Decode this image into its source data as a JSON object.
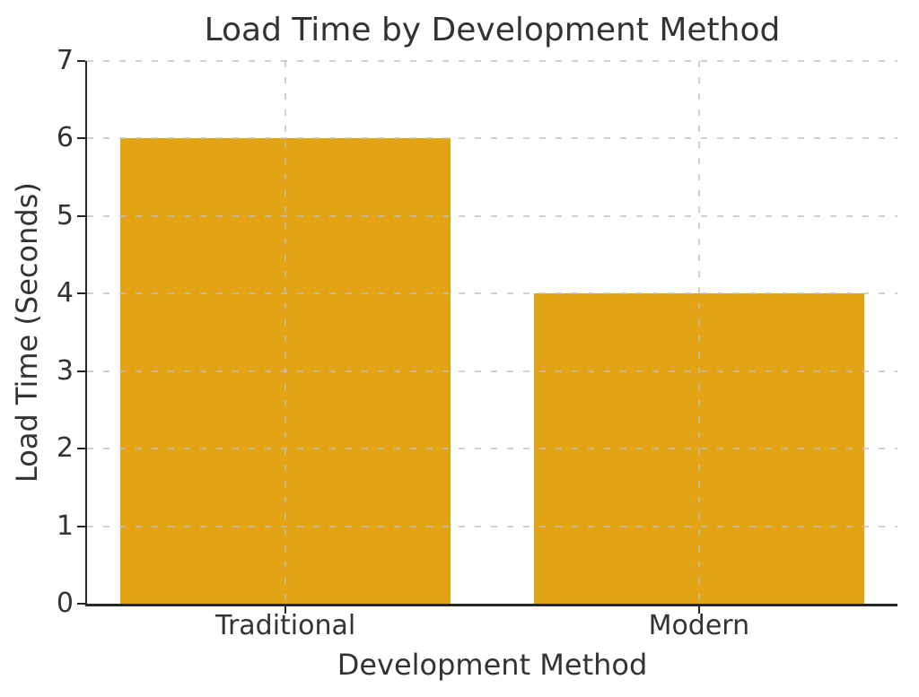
{
  "chart_data": {
    "type": "bar",
    "title": "Load Time by Development Method",
    "xlabel": "Development Method",
    "ylabel": "Load Time (Seconds)",
    "categories": [
      "Traditional",
      "Modern"
    ],
    "values": [
      6,
      4
    ],
    "ylim": [
      0,
      7
    ],
    "yticks": [
      0,
      1,
      2,
      3,
      4,
      5,
      6,
      7
    ],
    "xlim": [
      -0.48,
      1.48
    ],
    "bar_width": 0.8,
    "legend": "none",
    "grid": {
      "style": "dashed",
      "axes": "both",
      "drawn_above_bars": true
    }
  },
  "colors": {
    "bar": "#E2A414",
    "text": "#333333",
    "spine": "#262626",
    "grid": "#c0c0c0",
    "background": "#ffffff"
  }
}
